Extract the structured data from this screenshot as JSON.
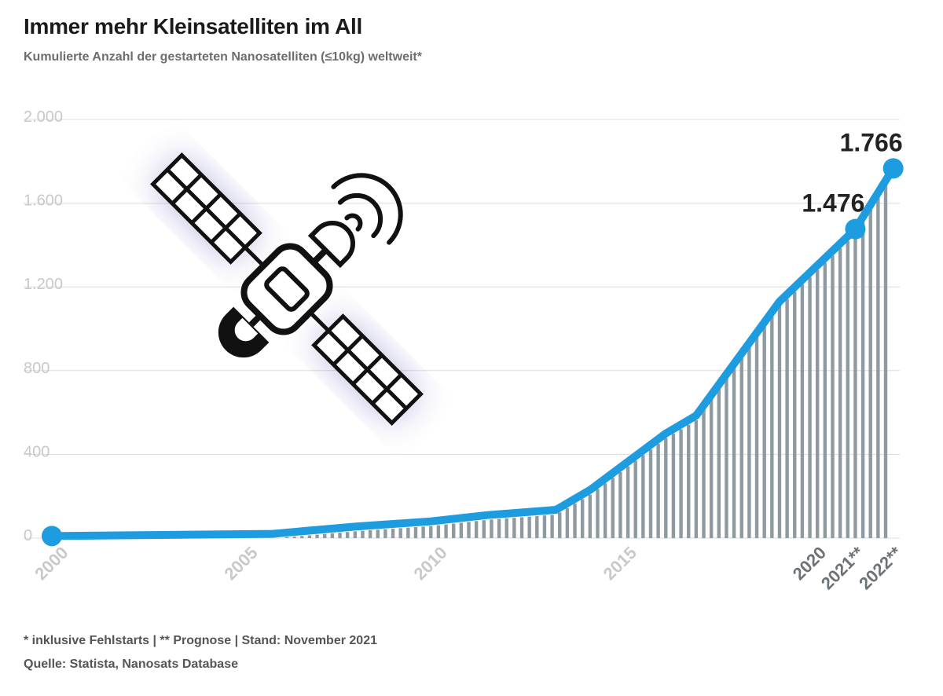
{
  "title": "Immer mehr Kleinsatelliten im All",
  "subtitle": "Kumulierte Anzahl der gestarteten Nanosatelliten (≤10kg) weltweit*",
  "footnote": "* inklusive Fehlstarts | ** Prognose | Stand: November 2021",
  "source": "Quelle: Statista, Nanosats Database",
  "illustration_icon": "satellite-icon",
  "colors": {
    "line": "#1e9ce0",
    "bars": "#8e9aa0",
    "grid": "#dcdcdc",
    "axis_label": "#c9c9c9",
    "highlight_label": "#222222",
    "title": "#1a1a1a",
    "subtitle": "#6d6d6d"
  },
  "chart_data": {
    "type": "line",
    "ylim": [
      0,
      2000
    ],
    "grid": true,
    "y_ticks": [
      {
        "value": 0,
        "label": "0"
      },
      {
        "value": 400,
        "label": "400"
      },
      {
        "value": 800,
        "label": "800"
      },
      {
        "value": 1200,
        "label": "1.200"
      },
      {
        "value": 1600,
        "label": "1.600"
      },
      {
        "value": 2000,
        "label": "2.000"
      }
    ],
    "xlim": [
      2000,
      2022
    ],
    "x_ticks": [
      {
        "value": 2000,
        "label": "2000",
        "highlight": false
      },
      {
        "value": 2005,
        "label": "2005",
        "highlight": false
      },
      {
        "value": 2010,
        "label": "2010",
        "highlight": false
      },
      {
        "value": 2015,
        "label": "2015",
        "highlight": false
      },
      {
        "value": 2020,
        "label": "2020",
        "highlight": true
      },
      {
        "value": 2021,
        "label": "2021**",
        "highlight": true
      },
      {
        "value": 2022,
        "label": "2022**",
        "highlight": true
      }
    ],
    "series": [
      {
        "points": [
          {
            "x": 2000,
            "y": 10
          },
          {
            "x": 2005.8,
            "y": 20
          },
          {
            "x": 2008,
            "y": 55
          },
          {
            "x": 2010,
            "y": 80
          },
          {
            "x": 2011.5,
            "y": 110
          },
          {
            "x": 2013.3,
            "y": 135
          },
          {
            "x": 2014.2,
            "y": 230
          },
          {
            "x": 2016.2,
            "y": 500
          },
          {
            "x": 2017,
            "y": 585
          },
          {
            "x": 2019.2,
            "y": 1130
          },
          {
            "x": 2021.2,
            "y": 1476
          },
          {
            "x": 2022.2,
            "y": 1766
          }
        ]
      }
    ],
    "markers": [
      {
        "x": 2000,
        "y": 10,
        "label": ""
      },
      {
        "x": 2021.2,
        "y": 1476,
        "label": "1.476"
      },
      {
        "x": 2022.2,
        "y": 1766,
        "label": "1.766"
      }
    ]
  }
}
